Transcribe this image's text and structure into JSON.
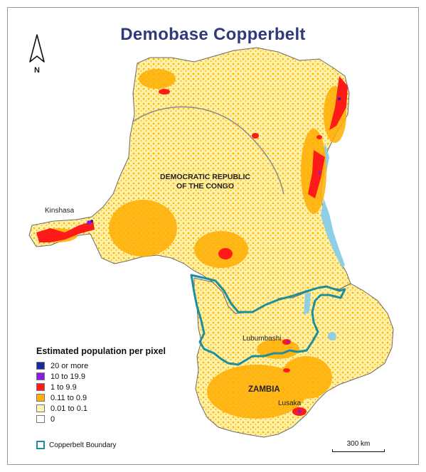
{
  "title": "Demobase Copperbelt",
  "north_label": "N",
  "labels": {
    "country_drc_line1": "DEMOCRATIC REPUBLIC",
    "country_drc_line2": "OF THE CONGO",
    "kinshasa": "Kinshasa",
    "lubumbashi": "Lubumbashi",
    "zambia": "ZAMBIA",
    "lusaka": "Lusaka"
  },
  "legend": {
    "title": "Estimated population per pixel",
    "items": [
      {
        "label": "20 or more",
        "color": "#1a2a9c"
      },
      {
        "label": "10 to 19.9",
        "color": "#8a1be0"
      },
      {
        "label": "1 to 9.9",
        "color": "#ff1a1a"
      },
      {
        "label": "0.11 to 0.9",
        "color": "#ffb000"
      },
      {
        "label": "0.01 to 0.1",
        "color": "#fff4b0"
      },
      {
        "label": "0",
        "color": "#ffffff"
      }
    ],
    "boundary_label": "Copperbelt Boundary",
    "boundary_color": "#1d8e9b"
  },
  "scale": {
    "label": "300 km"
  },
  "colors": {
    "water": "#8ecfe6",
    "country_outline": "#6b6b6b"
  }
}
